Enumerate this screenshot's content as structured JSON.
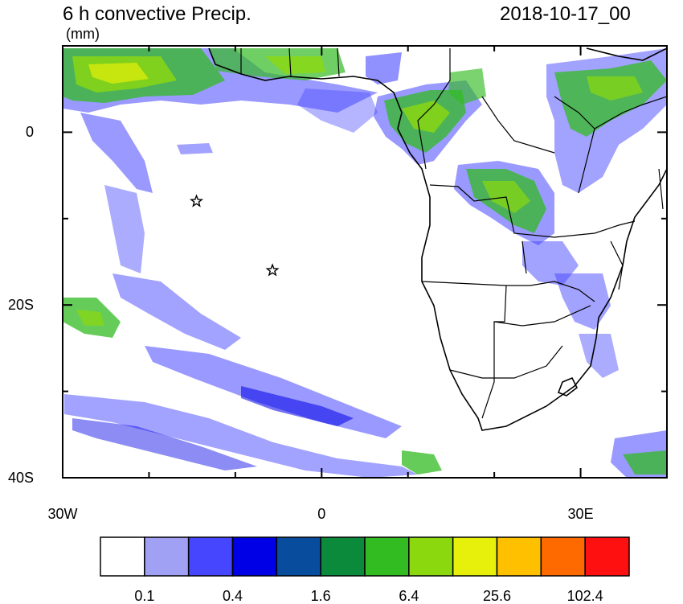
{
  "header": {
    "title": "6 h convective Precip.",
    "units": "(mm)",
    "datetime": "2018-10-17_00"
  },
  "map": {
    "lon_range": [
      -30,
      40
    ],
    "lat_range": [
      -40,
      10
    ],
    "x_ticks": [
      {
        "value": -30,
        "label": "30W"
      },
      {
        "value": 0,
        "label": "0"
      },
      {
        "value": 30,
        "label": "30E"
      }
    ],
    "y_ticks": [
      {
        "value": 0,
        "label": "0"
      },
      {
        "value": -20,
        "label": "20S"
      },
      {
        "value": -40,
        "label": "40S"
      }
    ],
    "markers": [
      {
        "name": "star-marker-1",
        "lon": -14.5,
        "lat": -8
      },
      {
        "name": "star-marker-2",
        "lon": -5.7,
        "lat": -16
      }
    ]
  },
  "colorbar": {
    "colors": [
      "#ffffff",
      "#a0a0f5",
      "#4646ff",
      "#0000e6",
      "#084c9e",
      "#0b8a3c",
      "#33bb22",
      "#8cd80e",
      "#e6f00a",
      "#ffc000",
      "#ff6a00",
      "#ff1010"
    ],
    "labels": [
      "0.1",
      "0.4",
      "1.6",
      "6.4",
      "25.6",
      "102.4"
    ]
  }
}
